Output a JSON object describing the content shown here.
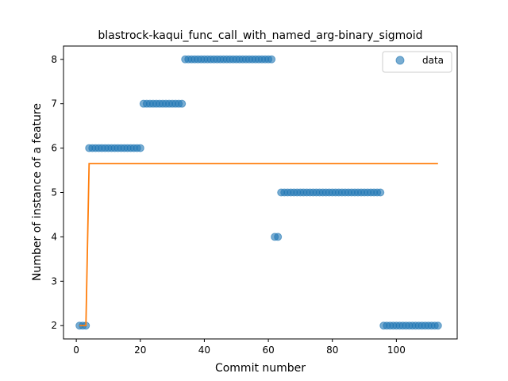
{
  "chart_data": {
    "type": "scatter",
    "title": "blastrock-kaqui_func_call_with_named_arg-binary_sigmoid",
    "xlabel": "Commit number",
    "ylabel": "Number of instance of a feature",
    "xlim": [
      -4,
      119
    ],
    "ylim": [
      1.7,
      8.3
    ],
    "xticks": [
      0,
      20,
      40,
      60,
      80,
      100
    ],
    "yticks": [
      2,
      3,
      4,
      5,
      6,
      7,
      8
    ],
    "grid": false,
    "legend": {
      "position": "top-right",
      "entries": [
        "data"
      ]
    },
    "colors": {
      "data": "#1f77b4",
      "fit": "#ff7f0e"
    },
    "series": [
      {
        "name": "data",
        "type": "scatter",
        "x": [
          1,
          2,
          3,
          4,
          5,
          6,
          7,
          8,
          9,
          10,
          11,
          12,
          13,
          14,
          15,
          16,
          17,
          18,
          19,
          20,
          21,
          22,
          23,
          24,
          25,
          26,
          27,
          28,
          29,
          30,
          31,
          32,
          33,
          34,
          35,
          36,
          37,
          38,
          39,
          40,
          41,
          42,
          43,
          44,
          45,
          46,
          47,
          48,
          49,
          50,
          51,
          52,
          53,
          54,
          55,
          56,
          57,
          58,
          59,
          60,
          61,
          62,
          63,
          64,
          65,
          66,
          67,
          68,
          69,
          70,
          71,
          72,
          73,
          74,
          75,
          76,
          77,
          78,
          79,
          80,
          81,
          82,
          83,
          84,
          85,
          86,
          87,
          88,
          89,
          90,
          91,
          92,
          93,
          94,
          95,
          96,
          97,
          98,
          99,
          100,
          101,
          102,
          103,
          104,
          105,
          106,
          107,
          108,
          109,
          110,
          111,
          112,
          113
        ],
        "y": [
          2,
          2,
          2,
          6,
          6,
          6,
          6,
          6,
          6,
          6,
          6,
          6,
          6,
          6,
          6,
          6,
          6,
          6,
          6,
          6,
          7,
          7,
          7,
          7,
          7,
          7,
          7,
          7,
          7,
          7,
          7,
          7,
          7,
          8,
          8,
          8,
          8,
          8,
          8,
          8,
          8,
          8,
          8,
          8,
          8,
          8,
          8,
          8,
          8,
          8,
          8,
          8,
          8,
          8,
          8,
          8,
          8,
          8,
          8,
          8,
          8,
          4,
          4,
          5,
          5,
          5,
          5,
          5,
          5,
          5,
          5,
          5,
          5,
          5,
          5,
          5,
          5,
          5,
          5,
          5,
          5,
          5,
          5,
          5,
          5,
          5,
          5,
          5,
          5,
          5,
          5,
          5,
          5,
          5,
          5,
          2,
          2,
          2,
          2,
          2,
          2,
          2,
          2,
          2,
          2,
          2,
          2,
          2,
          2,
          2,
          2,
          2,
          2
        ]
      },
      {
        "name": "",
        "type": "line",
        "x": [
          1,
          2,
          3,
          4,
          113
        ],
        "y": [
          2,
          2,
          2,
          5.65,
          5.65
        ]
      }
    ]
  }
}
